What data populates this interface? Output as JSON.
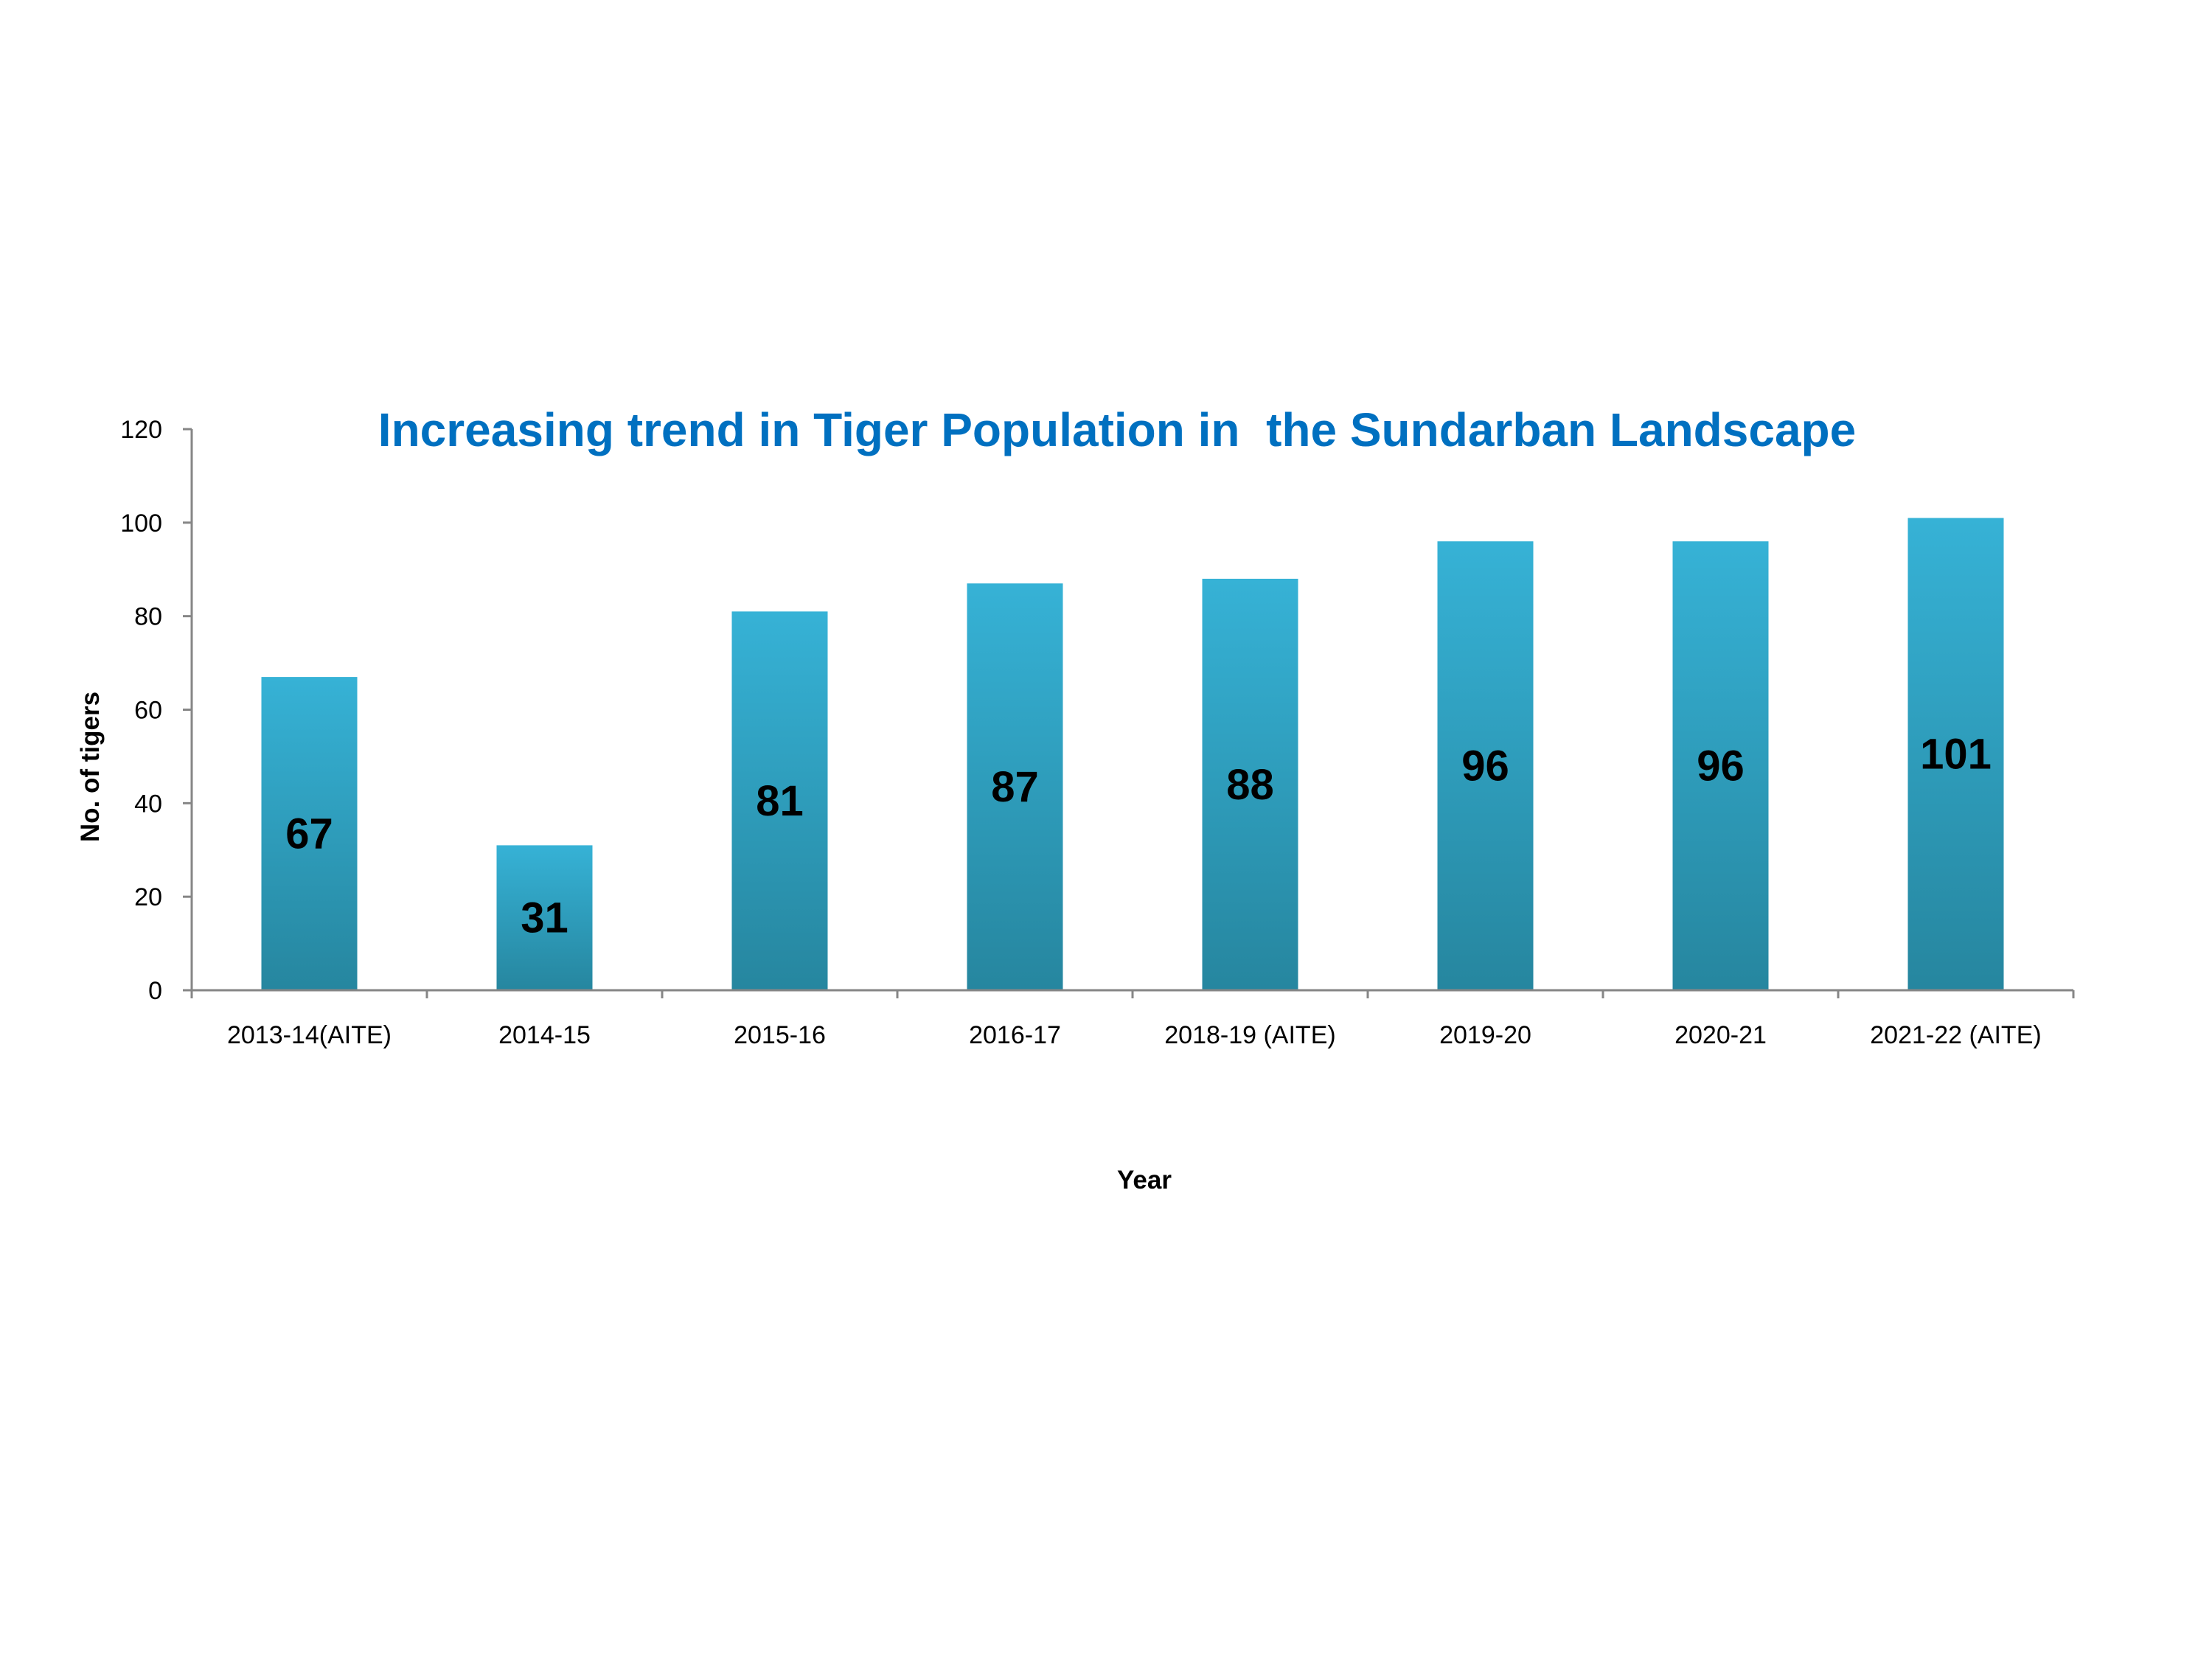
{
  "chart_data": {
    "type": "bar",
    "title": "Increasing trend in Tiger Population in  the Sundarban Landscape",
    "xlabel": "Year",
    "ylabel": "No. of tigers",
    "categories": [
      "2013-14(AITE)",
      "2014-15",
      "2015-16",
      "2016-17",
      "2018-19 (AITE)",
      "2019-20",
      "2020-21",
      "2021-22 (AITE)"
    ],
    "values": [
      67,
      31,
      81,
      87,
      88,
      96,
      96,
      101
    ],
    "data_labels": [
      "67",
      "31",
      "81",
      "87",
      "88",
      "96",
      "96",
      "101"
    ],
    "ylim": [
      0,
      120
    ],
    "yticks": [
      "0",
      "20",
      "40",
      "60",
      "80",
      "100",
      "120"
    ],
    "grid": false,
    "legend": "none",
    "colors": {
      "title": "#0070C0",
      "bar_top": "#36B2D6",
      "bar_bottom": "#26869F",
      "axis": "#868686"
    }
  }
}
